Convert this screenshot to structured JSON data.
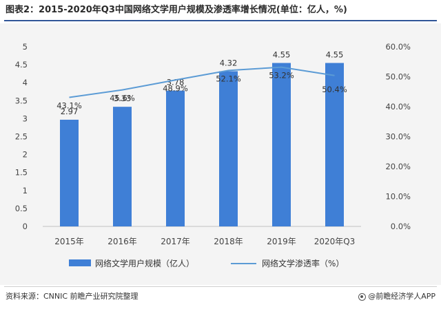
{
  "title": "图表2：2015-2020年Q3中国网络文学用户规模及渗透率增长情况(单位：亿人，%)",
  "source": "资料来源：CNNIC 前瞻产业研究院整理",
  "brand": "@前瞻经济学人APP",
  "colors": {
    "bar": "#3f7fd6",
    "line": "#5b9bd5",
    "title_rule": "#2f5597"
  },
  "chart_data": {
    "type": "bar",
    "categories": [
      "2015年",
      "2016年",
      "2017年",
      "2018年",
      "2019年",
      "2020年Q3"
    ],
    "series": [
      {
        "name": "网络文学用户规模（亿人）",
        "type": "bar",
        "axis": "left",
        "values": [
          2.97,
          3.33,
          3.78,
          4.32,
          4.55,
          4.55
        ],
        "labels": [
          "2.97",
          "3.33",
          "3.78",
          "4.32",
          "4.55",
          "4.55"
        ]
      },
      {
        "name": "网络文学渗透率（%）",
        "type": "line",
        "axis": "right",
        "values": [
          43.1,
          45.6,
          48.9,
          52.1,
          53.2,
          50.4
        ],
        "labels": [
          "43.1%",
          "45.6%",
          "48.9%",
          "52.1%",
          "53.2%",
          "50.4%"
        ]
      }
    ],
    "y_left": {
      "min": 0,
      "max": 5,
      "ticks": [
        "0",
        "0.5",
        "1",
        "1.5",
        "2",
        "2.5",
        "3",
        "3.5",
        "4",
        "4.5",
        "5"
      ]
    },
    "y_right": {
      "min": 0,
      "max": 60,
      "ticks": [
        "0.0%",
        "10.0%",
        "20.0%",
        "30.0%",
        "40.0%",
        "50.0%",
        "60.0%"
      ]
    },
    "grid": false,
    "legend_position": "bottom"
  }
}
